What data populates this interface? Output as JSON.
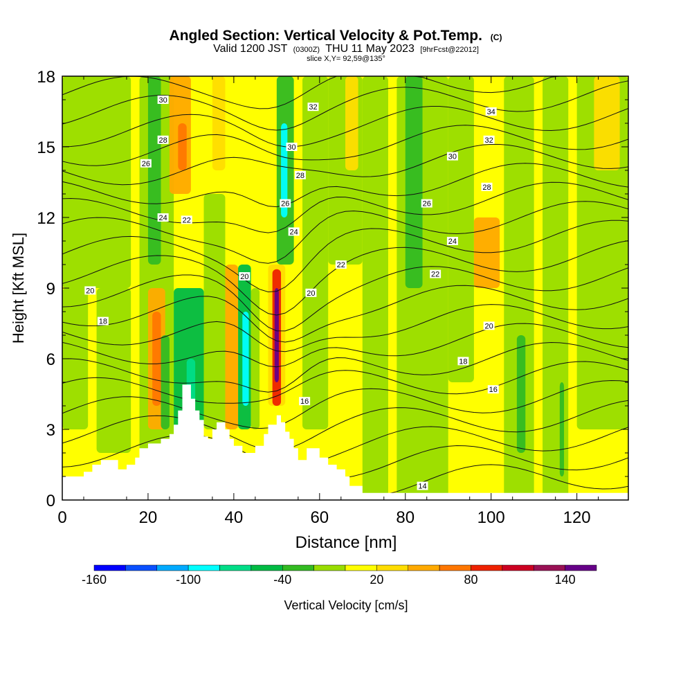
{
  "header": {
    "title": "Angled Section: Vertical Velocity & Pot.Temp.",
    "title_unit": "(C)",
    "valid_prefix": "Valid 1200 JST",
    "valid_zulu": "(0300Z)",
    "valid_date": "THU 11 May 2023",
    "valid_fcst": "[9hrFcst@22012]",
    "slice": "slice X,Y= 92,59@135°"
  },
  "colorbar": {
    "label": "Vertical Velocity [cm/s]",
    "tick_labels": [
      "-160",
      "-100",
      "-40",
      "20",
      "80",
      "140"
    ],
    "colors": [
      "#0000ff",
      "#0a50ff",
      "#00aaff",
      "#00ffff",
      "#00dd88",
      "#00bb44",
      "#33bb22",
      "#99dd00",
      "#ffff00",
      "#ffdd00",
      "#ffaa00",
      "#ff7700",
      "#ee2200",
      "#cc0022",
      "#991155",
      "#660088"
    ]
  },
  "chart_data": {
    "type": "contour-cross-section",
    "xlabel": "Distance [nm]",
    "ylabel": "Height [Kft MSL]",
    "xlim": [
      0,
      132
    ],
    "ylim": [
      0,
      18
    ],
    "x_ticks": [
      "0",
      "20",
      "40",
      "60",
      "80",
      "100",
      "120"
    ],
    "y_ticks": [
      "0",
      "3",
      "6",
      "9",
      "12",
      "15",
      "18"
    ],
    "shaded_field": "Vertical Velocity [cm/s]",
    "contour_field": "Pot.Temp. (C)",
    "contour_labels": [
      {
        "text": "30",
        "x": 23.5,
        "y": 17.0
      },
      {
        "text": "32",
        "x": 58.5,
        "y": 16.7
      },
      {
        "text": "34",
        "x": 100,
        "y": 16.5
      },
      {
        "text": "28",
        "x": 23.5,
        "y": 15.3
      },
      {
        "text": "30",
        "x": 53.5,
        "y": 15.0
      },
      {
        "text": "32",
        "x": 99.5,
        "y": 15.3
      },
      {
        "text": "26",
        "x": 19.5,
        "y": 14.3
      },
      {
        "text": "28",
        "x": 55.5,
        "y": 13.8
      },
      {
        "text": "30",
        "x": 91,
        "y": 14.6
      },
      {
        "text": "28",
        "x": 99,
        "y": 13.3
      },
      {
        "text": "26",
        "x": 52,
        "y": 12.6
      },
      {
        "text": "26",
        "x": 85,
        "y": 12.6
      },
      {
        "text": "24",
        "x": 23.5,
        "y": 12.0
      },
      {
        "text": "22",
        "x": 29,
        "y": 11.9
      },
      {
        "text": "24",
        "x": 54,
        "y": 11.4
      },
      {
        "text": "24",
        "x": 91,
        "y": 11.0
      },
      {
        "text": "22",
        "x": 65,
        "y": 10.0
      },
      {
        "text": "22",
        "x": 87,
        "y": 9.6
      },
      {
        "text": "20",
        "x": 42.5,
        "y": 9.5
      },
      {
        "text": "20",
        "x": 6.5,
        "y": 8.9
      },
      {
        "text": "20",
        "x": 58,
        "y": 8.8
      },
      {
        "text": "18",
        "x": 9.5,
        "y": 7.6
      },
      {
        "text": "20",
        "x": 99.5,
        "y": 7.4
      },
      {
        "text": "18",
        "x": 93.5,
        "y": 5.9
      },
      {
        "text": "16",
        "x": 100.5,
        "y": 4.7
      },
      {
        "text": "16",
        "x": 56.5,
        "y": 4.2
      },
      {
        "text": "14",
        "x": 84,
        "y": 0.6
      }
    ],
    "terrain_profile": [
      [
        0,
        1.0
      ],
      [
        5,
        1.0
      ],
      [
        5,
        1.2
      ],
      [
        7,
        1.2
      ],
      [
        7,
        1.5
      ],
      [
        9,
        1.5
      ],
      [
        9,
        1.7
      ],
      [
        13,
        1.7
      ],
      [
        13,
        1.3
      ],
      [
        15,
        1.3
      ],
      [
        15,
        1.5
      ],
      [
        17,
        1.5
      ],
      [
        17,
        1.8
      ],
      [
        18,
        1.8
      ],
      [
        18,
        2.2
      ],
      [
        20,
        2.2
      ],
      [
        20,
        2.4
      ],
      [
        23,
        2.4
      ],
      [
        23,
        2.6
      ],
      [
        25,
        2.6
      ],
      [
        25,
        2.8
      ],
      [
        26,
        2.8
      ],
      [
        26,
        3.2
      ],
      [
        27,
        3.2
      ],
      [
        27,
        3.8
      ],
      [
        28,
        3.8
      ],
      [
        28,
        4.9
      ],
      [
        30,
        4.9
      ],
      [
        30,
        4.3
      ],
      [
        31,
        4.3
      ],
      [
        31,
        3.8
      ],
      [
        32,
        3.8
      ],
      [
        32,
        3.4
      ],
      [
        33,
        3.4
      ],
      [
        33,
        2.7
      ],
      [
        34,
        2.7
      ],
      [
        34,
        2.6
      ],
      [
        35,
        2.6
      ],
      [
        35,
        3.0
      ],
      [
        36,
        3.0
      ],
      [
        36,
        3.3
      ],
      [
        38,
        3.3
      ],
      [
        38,
        3.0
      ],
      [
        39,
        3.0
      ],
      [
        39,
        2.6
      ],
      [
        40,
        2.6
      ],
      [
        40,
        2.3
      ],
      [
        42,
        2.3
      ],
      [
        42,
        2.0
      ],
      [
        45,
        2.0
      ],
      [
        45,
        2.3
      ],
      [
        47,
        2.3
      ],
      [
        47,
        2.8
      ],
      [
        48,
        2.8
      ],
      [
        48,
        3.2
      ],
      [
        50,
        3.2
      ],
      [
        50,
        3.6
      ],
      [
        51,
        3.6
      ],
      [
        51,
        3.3
      ],
      [
        52,
        3.3
      ],
      [
        52,
        2.9
      ],
      [
        53,
        2.9
      ],
      [
        53,
        2.6
      ],
      [
        54,
        2.6
      ],
      [
        54,
        2.2
      ],
      [
        55,
        2.2
      ],
      [
        55,
        1.7
      ],
      [
        57,
        1.7
      ],
      [
        57,
        2.2
      ],
      [
        60,
        2.2
      ],
      [
        60,
        1.8
      ],
      [
        62,
        1.8
      ],
      [
        62,
        1.5
      ],
      [
        64,
        1.5
      ],
      [
        64,
        1.3
      ],
      [
        66,
        1.3
      ],
      [
        66,
        1.0
      ],
      [
        67,
        1.0
      ],
      [
        67,
        0.6
      ],
      [
        70,
        0.6
      ],
      [
        70,
        0.3
      ],
      [
        132,
        0.3
      ]
    ]
  }
}
